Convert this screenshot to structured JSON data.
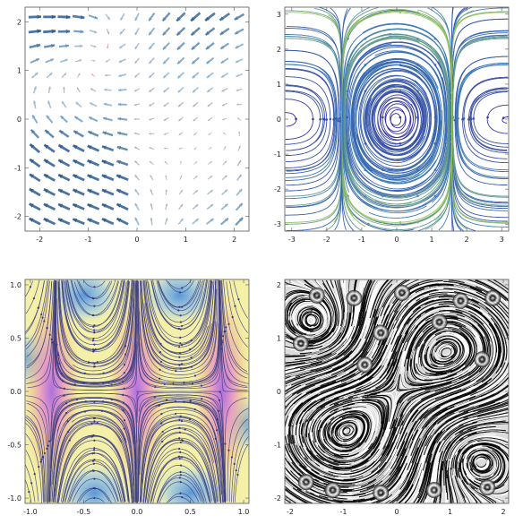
{
  "chart_data": [
    {
      "type": "vector",
      "title": "",
      "xlabel": "",
      "ylabel": "",
      "xlim": [
        -2.3,
        2.3
      ],
      "ylim": [
        -2.3,
        2.3
      ],
      "x_ticks": [
        "-2",
        "-1",
        "0",
        "1",
        "2"
      ],
      "y_ticks": [
        "-2",
        "-1",
        "0",
        "1",
        "2"
      ],
      "grid": false,
      "field": "vector arrows on a 15x15 grid, colored by magnitude (blue = strong, orange/pink = weak)",
      "colors": {
        "strong": "#2c5d8f",
        "mid": "#8ab8d8",
        "weak": "#e0a080"
      }
    },
    {
      "type": "stream",
      "title": "",
      "xlabel": "",
      "ylabel": "",
      "xlim": [
        -3.2,
        3.2
      ],
      "ylim": [
        -3.2,
        3.2
      ],
      "x_ticks": [
        "-3",
        "-2",
        "-1",
        "0",
        "1",
        "2",
        "3"
      ],
      "y_ticks": [
        "-3",
        "-2",
        "-1",
        "0",
        "1",
        "2",
        "3"
      ],
      "grid": false,
      "field": "streamlines with closed orbits around centers near (±0.3, 0) and (±2.9, 0)",
      "colors": {
        "low": "#3a2a9a",
        "mid": "#3a7ab8",
        "high": "#9ac860"
      }
    },
    {
      "type": "stream_density",
      "title": "",
      "xlabel": "",
      "ylabel": "",
      "xlim": [
        -1.05,
        1.05
      ],
      "ylim": [
        -1.05,
        1.05
      ],
      "x_ticks": [
        "-1.0",
        "-0.5",
        "0.0",
        "0.5",
        "1.0"
      ],
      "y_ticks": [
        "-1.0",
        "-0.5",
        "0.0",
        "0.5",
        "1.0"
      ],
      "grid": false,
      "field": "streamlines over a density background with foci near x = -0.8, 0.0, 0.8 on y = 0",
      "colors": {
        "focus": "#b070e0",
        "warm": "#f0b888",
        "yellow": "#f4f0a0",
        "cool": "#6aa8e0",
        "stream": "#3a3a80"
      }
    },
    {
      "type": "line_integral_convolution",
      "title": "",
      "xlabel": "",
      "ylabel": "",
      "xlim": [
        -2.1,
        2.1
      ],
      "ylim": [
        -2.1,
        2.1
      ],
      "x_ticks": [
        "-2",
        "-1",
        "0",
        "1",
        "2"
      ],
      "y_ticks": [
        "-2",
        "-1",
        "0",
        "1",
        "2"
      ],
      "grid": false,
      "field": "dense black-and-white streamline texture with spiral centers",
      "colors": {
        "ink": "#000000",
        "paper": "#ffffff"
      }
    }
  ]
}
